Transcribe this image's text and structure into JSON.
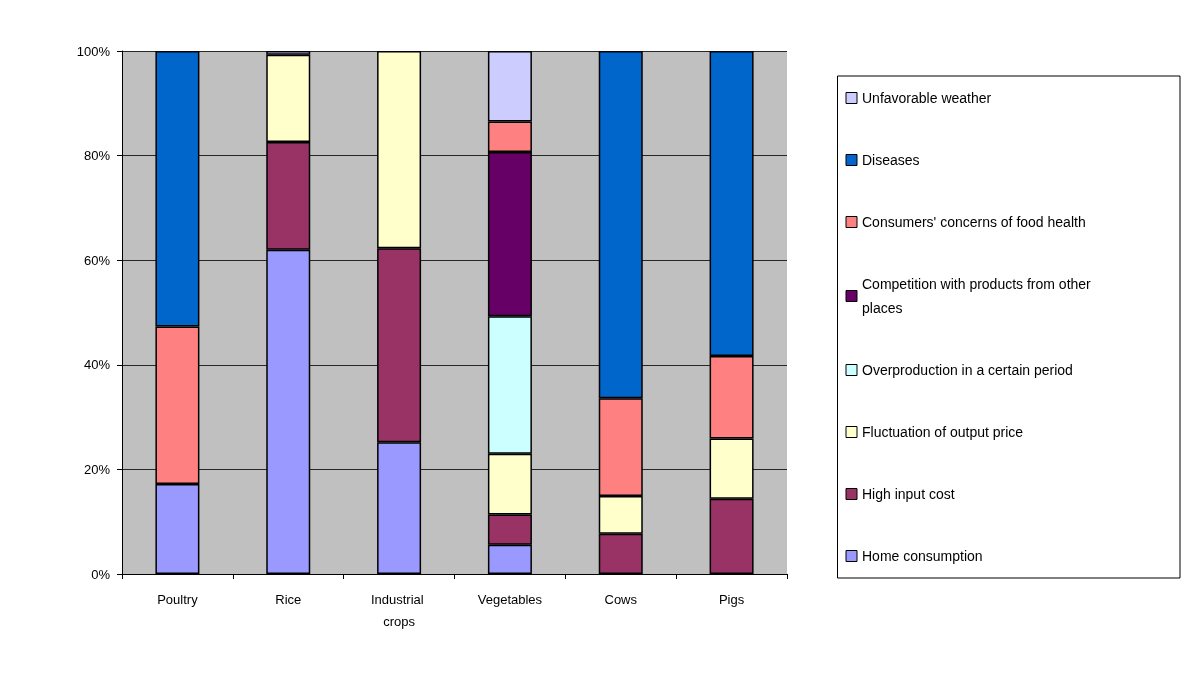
{
  "chart_data": {
    "type": "bar",
    "stacked": true,
    "categories": [
      "Poultry",
      "Rice",
      "Industrial crops",
      "Vegetables",
      "Cows",
      "Pigs"
    ],
    "series": [
      {
        "name": "Home consumption",
        "color": "#9999ff",
        "values": [
          17.2,
          62.0,
          25.2,
          5.6,
          null,
          null
        ]
      },
      {
        "name": "High input cost",
        "color": "#993366",
        "values": [
          null,
          20.6,
          37.1,
          5.8,
          7.7,
          14.4
        ]
      },
      {
        "name": "Fluctuation of output price",
        "color": "#ffffcc",
        "values": [
          null,
          16.7,
          37.7,
          11.6,
          7.2,
          11.5
        ]
      },
      {
        "name": "Overproduction in a certain period",
        "color": "#ccffff",
        "values": [
          null,
          null,
          null,
          26.3,
          null,
          null
        ]
      },
      {
        "name": "Competition with products from other places",
        "color": "#660066",
        "values": [
          null,
          null,
          null,
          31.4,
          null,
          null
        ]
      },
      {
        "name": "Consumers' concerns of food health",
        "color": "#ff8080",
        "values": [
          30.1,
          null,
          null,
          5.8,
          18.7,
          15.8
        ]
      },
      {
        "name": "Diseases",
        "color": "#0066cc",
        "values": [
          52.7,
          null,
          null,
          null,
          66.4,
          58.3
        ]
      },
      {
        "name": "Unfavorable weather",
        "color": "#ccccff",
        "values": [
          null,
          0.7,
          null,
          13.5,
          null,
          null
        ]
      }
    ],
    "ylim": [
      0,
      100
    ],
    "yticks": [
      {
        "value": 0,
        "label": "0%"
      },
      {
        "value": 20,
        "label": "20%"
      },
      {
        "value": 40,
        "label": "40%"
      },
      {
        "value": 60,
        "label": "60%"
      },
      {
        "value": 80,
        "label": "80%"
      },
      {
        "value": 100,
        "label": "100%"
      }
    ],
    "grid": "y",
    "legend": "right"
  }
}
